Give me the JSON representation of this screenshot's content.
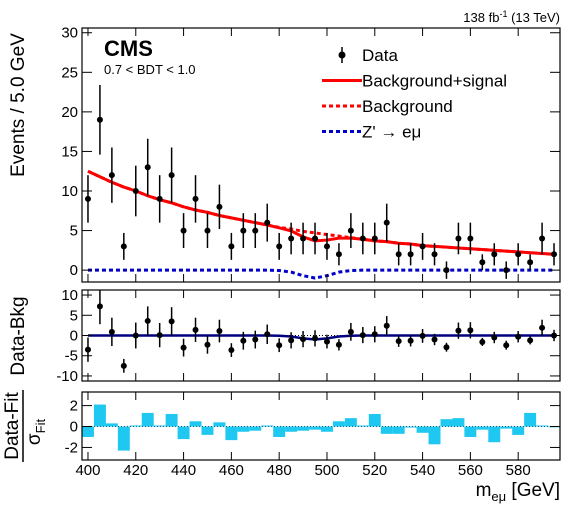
{
  "chart_data": [
    {
      "type": "errorbar",
      "title": "CMS",
      "subtitle": "0.7 < BDT < 1.0",
      "lumi": {
        "text": "138 fb",
        "sup": "-1",
        "energy": "(13 TeV)"
      },
      "y_label": "Events / 5.0 GeV",
      "legend": "upper right",
      "xlim": [
        397.5,
        597.5
      ],
      "ylim": [
        -1.5,
        30.6
      ],
      "yticks": [
        0,
        5,
        10,
        15,
        20,
        25,
        30
      ],
      "x": [
        400,
        405,
        410,
        415,
        420,
        425,
        430,
        435,
        440,
        445,
        450,
        455,
        460,
        465,
        470,
        475,
        480,
        485,
        490,
        495,
        500,
        505,
        510,
        515,
        520,
        525,
        530,
        535,
        540,
        545,
        550,
        555,
        560,
        565,
        570,
        575,
        580,
        585,
        590,
        595
      ],
      "series": [
        {
          "name": "Data",
          "kind": "points",
          "color": "#000000",
          "values": [
            9,
            19,
            12,
            3,
            10,
            13,
            9,
            12,
            5,
            9,
            5,
            8,
            3,
            5,
            5,
            6,
            3,
            4,
            4,
            4,
            3,
            2,
            5,
            4,
            4,
            6,
            2,
            2,
            3,
            2,
            0,
            4,
            4,
            1,
            2,
            0,
            2,
            1,
            4,
            2
          ],
          "errors": [
            3,
            4.4,
            3.5,
            1.7,
            3.2,
            3.6,
            3,
            3.5,
            2.2,
            3,
            2.2,
            2.8,
            1.7,
            2.2,
            2.2,
            2.4,
            1.7,
            2,
            2,
            2,
            1.7,
            1.4,
            2.2,
            2,
            2,
            2.4,
            1.4,
            1.4,
            1.7,
            1.4,
            1.1,
            2,
            2,
            1,
            1.4,
            1.1,
            1.4,
            1,
            2,
            1.4
          ]
        },
        {
          "name": "Background+signal",
          "kind": "line",
          "style": "solid",
          "color": "#ff0000",
          "values": [
            12.5,
            11.8,
            11.1,
            10.5,
            10.0,
            9.4,
            8.9,
            8.5,
            8.0,
            7.6,
            7.3,
            6.9,
            6.6,
            6.3,
            6.0,
            5.7,
            5.35,
            4.95,
            4.2,
            3.7,
            3.8,
            4.05,
            4.05,
            3.9,
            3.7,
            3.6,
            3.4,
            3.3,
            3.1,
            3.0,
            2.9,
            2.8,
            2.7,
            2.6,
            2.5,
            2.4,
            2.3,
            2.2,
            2.1,
            2.0
          ]
        },
        {
          "name": "Background",
          "kind": "line",
          "style": "dotted",
          "color": "#ff0000",
          "values": [
            12.5,
            11.8,
            11.1,
            10.5,
            10.0,
            9.4,
            8.9,
            8.5,
            8.0,
            7.6,
            7.3,
            6.9,
            6.6,
            6.3,
            6.0,
            5.7,
            5.4,
            5.2,
            4.9,
            4.7,
            4.5,
            4.3,
            4.1,
            3.9,
            3.7,
            3.6,
            3.4,
            3.3,
            3.1,
            3.0,
            2.9,
            2.8,
            2.7,
            2.6,
            2.5,
            2.4,
            2.3,
            2.2,
            2.1,
            2.0
          ]
        },
        {
          "name": "Z' → eμ",
          "kind": "line",
          "style": "dotted",
          "color": "#0000cc",
          "values": [
            0,
            0,
            0,
            0,
            0,
            0,
            0,
            0,
            0,
            0,
            0,
            0,
            0,
            0,
            0,
            0,
            -0.05,
            -0.25,
            -0.7,
            -1.0,
            -0.7,
            -0.25,
            -0.05,
            0,
            0,
            0,
            0,
            0,
            0,
            0,
            0,
            0,
            0,
            0,
            0,
            0,
            0,
            0,
            0,
            0
          ]
        }
      ]
    },
    {
      "type": "errorbar",
      "y_label": "Data-Bkg",
      "xlim": [
        397.5,
        597.5
      ],
      "ylim": [
        -11.25,
        11.25
      ],
      "yticks": [
        -10,
        -5,
        0,
        5,
        10
      ],
      "x": [
        400,
        405,
        410,
        415,
        420,
        425,
        430,
        435,
        440,
        445,
        450,
        455,
        460,
        465,
        470,
        475,
        480,
        485,
        490,
        495,
        500,
        505,
        510,
        515,
        520,
        525,
        530,
        535,
        540,
        545,
        550,
        555,
        560,
        565,
        570,
        575,
        580,
        585,
        590,
        595
      ],
      "series": [
        {
          "kind": "points",
          "color": "#000000",
          "values": [
            -3.5,
            7.2,
            0.9,
            -7.5,
            0,
            3.6,
            0.1,
            3.5,
            -3,
            1.4,
            -2.3,
            1.1,
            -3.6,
            -1.3,
            -1,
            0.3,
            -2.4,
            -1.2,
            -0.9,
            -0.7,
            -1.5,
            -2.3,
            0.9,
            0.1,
            0.3,
            2.4,
            -1.4,
            -1.3,
            -0.1,
            -1,
            -2.9,
            1.2,
            1.3,
            -1.6,
            -0.5,
            -2.4,
            -0.3,
            -1.2,
            1.9,
            0
          ],
          "errors": [
            3,
            4.4,
            3.5,
            1.7,
            3.2,
            3.6,
            3,
            3.5,
            2.2,
            3,
            2.2,
            2.8,
            1.7,
            2.2,
            2.2,
            2.4,
            1.7,
            2,
            2,
            2,
            1.7,
            1.4,
            2.2,
            2,
            2,
            2.4,
            1.4,
            1.4,
            1.7,
            1.4,
            1.1,
            2,
            2,
            1,
            1.4,
            1.1,
            1.4,
            1,
            2,
            1.4
          ]
        },
        {
          "kind": "line",
          "style": "solid",
          "color": "#000080",
          "values": [
            0,
            0,
            0,
            0,
            0,
            0,
            0,
            0,
            0,
            0,
            0,
            0,
            0,
            0,
            0,
            0,
            -0.05,
            -0.25,
            -0.7,
            -1.0,
            -0.7,
            -0.25,
            -0.05,
            0,
            0,
            0,
            0,
            0,
            0,
            0,
            0,
            0,
            0,
            0,
            0,
            0,
            0,
            0,
            0,
            0
          ]
        }
      ]
    },
    {
      "type": "bar",
      "y_label": {
        "numerator": "Data-Fit",
        "symbol": "σ",
        "subscript": "Fit"
      },
      "x_label": {
        "symbol": "m",
        "subscript": "eμ",
        "unit": "[GeV]"
      },
      "xlim": [
        397.5,
        597.5
      ],
      "xticks": [
        400,
        420,
        440,
        460,
        480,
        500,
        520,
        540,
        560,
        580
      ],
      "ylim": [
        -3.2,
        3.3
      ],
      "yticks": [
        -2,
        0,
        2
      ],
      "color": "#1ec8f0",
      "x": [
        400,
        405,
        410,
        415,
        420,
        425,
        430,
        435,
        440,
        445,
        450,
        455,
        460,
        465,
        470,
        475,
        480,
        485,
        490,
        495,
        500,
        505,
        510,
        515,
        520,
        525,
        530,
        535,
        540,
        545,
        550,
        555,
        560,
        565,
        570,
        575,
        580,
        585,
        590,
        595
      ],
      "values": [
        -1,
        2.1,
        0.3,
        -2.3,
        0.1,
        1.3,
        0.1,
        1.2,
        -1.2,
        0.5,
        -0.8,
        0.4,
        -1.3,
        -0.5,
        -0.4,
        0.1,
        -1,
        -0.5,
        -0.4,
        -0.3,
        -0.5,
        0.5,
        0.8,
        0.1,
        1.2,
        -0.7,
        -0.7,
        -0.1,
        -0.6,
        -1.7,
        0.7,
        0.8,
        -1,
        -0.3,
        -1.5,
        -0.2,
        -0.8,
        1.3,
        0.1,
        0
      ]
    }
  ]
}
